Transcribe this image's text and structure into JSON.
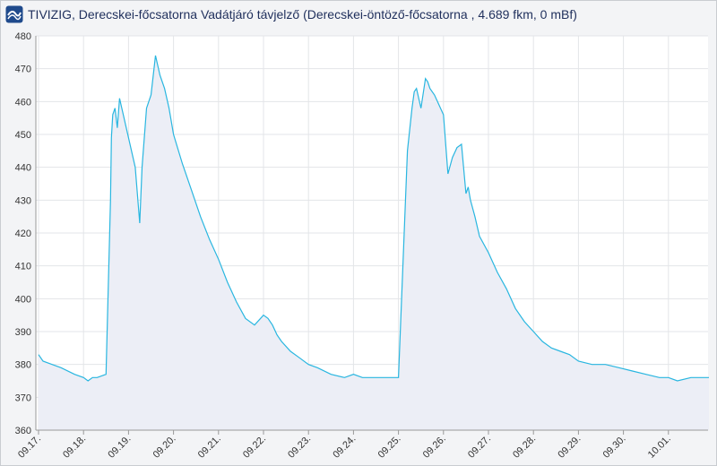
{
  "header": {
    "title": "TIVIZIG, Derecskei-főcsatorna Vadátjáró távjelző (Derecskei-öntöző-főcsatorna , 4.689 fkm, 0 mBf)",
    "logo_icon": "tivizig-logo-icon"
  },
  "colors": {
    "line": "#29b6e0",
    "area": "#eceef6",
    "logo": "#1f4a8c"
  },
  "chart_data": {
    "type": "area",
    "title": "",
    "xlabel": "",
    "ylabel": "",
    "ylim": [
      360,
      480
    ],
    "y_ticks": [
      360,
      370,
      380,
      390,
      400,
      410,
      420,
      430,
      440,
      450,
      460,
      470,
      480
    ],
    "x_ticks": [
      "09.17.",
      "09.18.",
      "09.19.",
      "09.20.",
      "09.21.",
      "09.22.",
      "09.23.",
      "09.24.",
      "09.25.",
      "09.26.",
      "09.27.",
      "09.28.",
      "09.29.",
      "09.30.",
      "10.01."
    ],
    "grid": true,
    "legend": "none",
    "x_day_offsets": [
      0,
      0.1,
      0.3,
      0.5,
      0.8,
      1.0,
      1.1,
      1.2,
      1.3,
      1.5,
      1.6,
      1.62,
      1.65,
      1.7,
      1.75,
      1.8,
      1.85,
      1.95,
      2.05,
      2.15,
      2.25,
      2.3,
      2.4,
      2.5,
      2.6,
      2.7,
      2.8,
      2.85,
      2.9,
      3.0,
      3.2,
      3.4,
      3.6,
      3.8,
      4.0,
      4.2,
      4.4,
      4.6,
      4.8,
      5.0,
      5.1,
      5.2,
      5.3,
      5.4,
      5.6,
      5.8,
      6.0,
      6.2,
      6.5,
      6.8,
      7.0,
      7.2,
      7.5,
      7.8,
      8.0,
      8.2,
      8.3,
      8.35,
      8.4,
      8.5,
      8.6,
      8.65,
      8.7,
      8.8,
      8.9,
      9.0,
      9.1,
      9.2,
      9.3,
      9.4,
      9.5,
      9.55,
      9.6,
      9.7,
      9.8,
      10.0,
      10.2,
      10.4,
      10.6,
      10.8,
      11.0,
      11.2,
      11.4,
      11.6,
      11.8,
      12.0,
      12.3,
      12.6,
      12.9,
      13.2,
      13.5,
      13.8,
      14.0,
      14.2,
      14.5,
      14.8,
      14.9
    ],
    "series": [
      {
        "values": [
          383,
          381,
          380,
          379,
          377,
          376,
          375,
          376,
          376,
          377,
          430,
          449,
          456,
          458,
          452,
          461,
          458,
          452,
          446,
          440,
          423,
          440,
          458,
          462,
          474,
          468,
          464,
          461,
          458,
          450,
          441,
          433,
          425,
          418,
          412,
          405,
          399,
          394,
          392,
          395,
          394,
          392,
          389,
          387,
          384,
          382,
          380,
          379,
          377,
          376,
          377,
          376,
          376,
          376,
          376,
          445,
          458,
          463,
          464,
          458,
          467,
          466,
          464,
          462,
          459,
          456,
          438,
          443,
          446,
          447,
          432,
          434,
          430,
          425,
          419,
          414,
          408,
          403,
          397,
          393,
          390,
          387,
          385,
          384,
          383,
          381,
          380,
          380,
          379,
          378,
          377,
          376,
          376,
          375,
          376,
          376,
          376
        ]
      }
    ]
  }
}
